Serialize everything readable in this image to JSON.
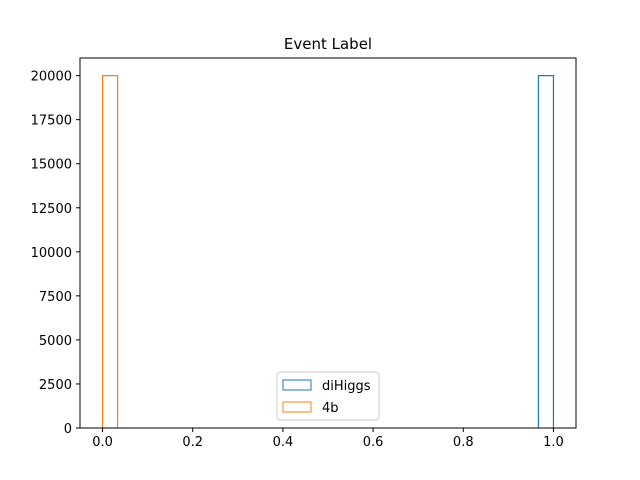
{
  "chart_data": {
    "type": "bar",
    "title": "Event Label",
    "xlabel": "",
    "ylabel": "",
    "xlim": [
      -0.05,
      1.05
    ],
    "ylim": [
      0,
      21000
    ],
    "xticks": [
      "0.0",
      "0.2",
      "0.4",
      "0.6",
      "0.8",
      "1.0"
    ],
    "yticks": [
      "0",
      "2500",
      "5000",
      "7500",
      "10000",
      "12500",
      "15000",
      "17500",
      "20000"
    ],
    "grid": false,
    "legend_position": "bottom-center",
    "bin_width": 0.0333,
    "series": [
      {
        "name": "diHiggs",
        "color": "#1f77b4",
        "bins": [
          {
            "x": 0.9667,
            "value": 20000
          }
        ]
      },
      {
        "name": "4b",
        "color": "#ff7f0e",
        "bins": [
          {
            "x": 0.0,
            "value": 20000
          }
        ]
      }
    ]
  }
}
